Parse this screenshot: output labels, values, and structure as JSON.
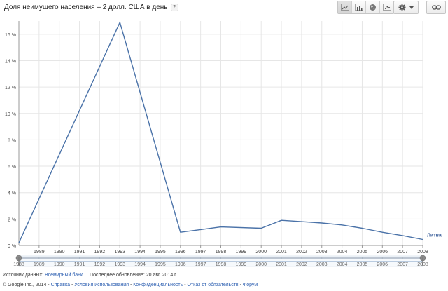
{
  "header": {
    "title": "Доля неимущего населения – 2 долл. США в день",
    "help_label": "?"
  },
  "toolbar": {
    "view_buttons": [
      {
        "name": "line-chart-icon",
        "active": true
      },
      {
        "name": "bar-chart-icon",
        "active": false
      },
      {
        "name": "globe-icon",
        "active": false
      },
      {
        "name": "scatter-chart-icon",
        "active": false
      }
    ],
    "settings_icon": "gear-icon",
    "dropdown_icon": "chevron-down-icon",
    "link_icon": "link-icon"
  },
  "chart_data": {
    "type": "line",
    "x": [
      1988,
      1993,
      1996,
      1997,
      1998,
      2000,
      2001,
      2002,
      2003,
      2004,
      2005,
      2006,
      2007,
      2008
    ],
    "series": [
      {
        "name": "Литва",
        "values": [
          0.2,
          16.9,
          1.0,
          1.2,
          1.4,
          1.3,
          1.9,
          1.8,
          1.7,
          1.55,
          1.3,
          1.0,
          0.75,
          0.45
        ],
        "color": "#4a72a8"
      }
    ],
    "xlim": [
      1988,
      2008
    ],
    "ylim": [
      0,
      17
    ],
    "yticks": [
      0,
      2,
      4,
      6,
      8,
      10,
      12,
      14,
      16
    ],
    "ytick_labels": [
      "0 %",
      "2 %",
      "4 %",
      "6 %",
      "8 %",
      "10 %",
      "12 %",
      "14 %",
      "16 %"
    ],
    "xtick_labels": [
      "1989",
      "1990",
      "1991",
      "1992",
      "1993",
      "1994",
      "1995",
      "1996",
      "1997",
      "1998",
      "1999",
      "2000",
      "2001",
      "2002",
      "2003",
      "2004",
      "2005",
      "2006",
      "2007",
      "2008"
    ],
    "grid": true,
    "legend": "end-of-line"
  },
  "timeline": {
    "labels": [
      "1988",
      "1989",
      "1990",
      "1991",
      "1992",
      "1993",
      "1994",
      "1995",
      "1996",
      "1997",
      "1998",
      "1999",
      "2000",
      "2001",
      "2002",
      "2003",
      "2004",
      "2005",
      "2006",
      "2007",
      "2008"
    ]
  },
  "footer": {
    "source_label": "Источник данных:",
    "source_link": "Всемирный банк",
    "updated_text": "Последнее обновление: 20 авг. 2014 г.",
    "copyright": "© Google Inc., 2014 -",
    "links": [
      "Справка",
      "Условия использования",
      "Конфиденциальность",
      "Отказ от обязательств",
      "Форум"
    ],
    "separator": " - "
  }
}
